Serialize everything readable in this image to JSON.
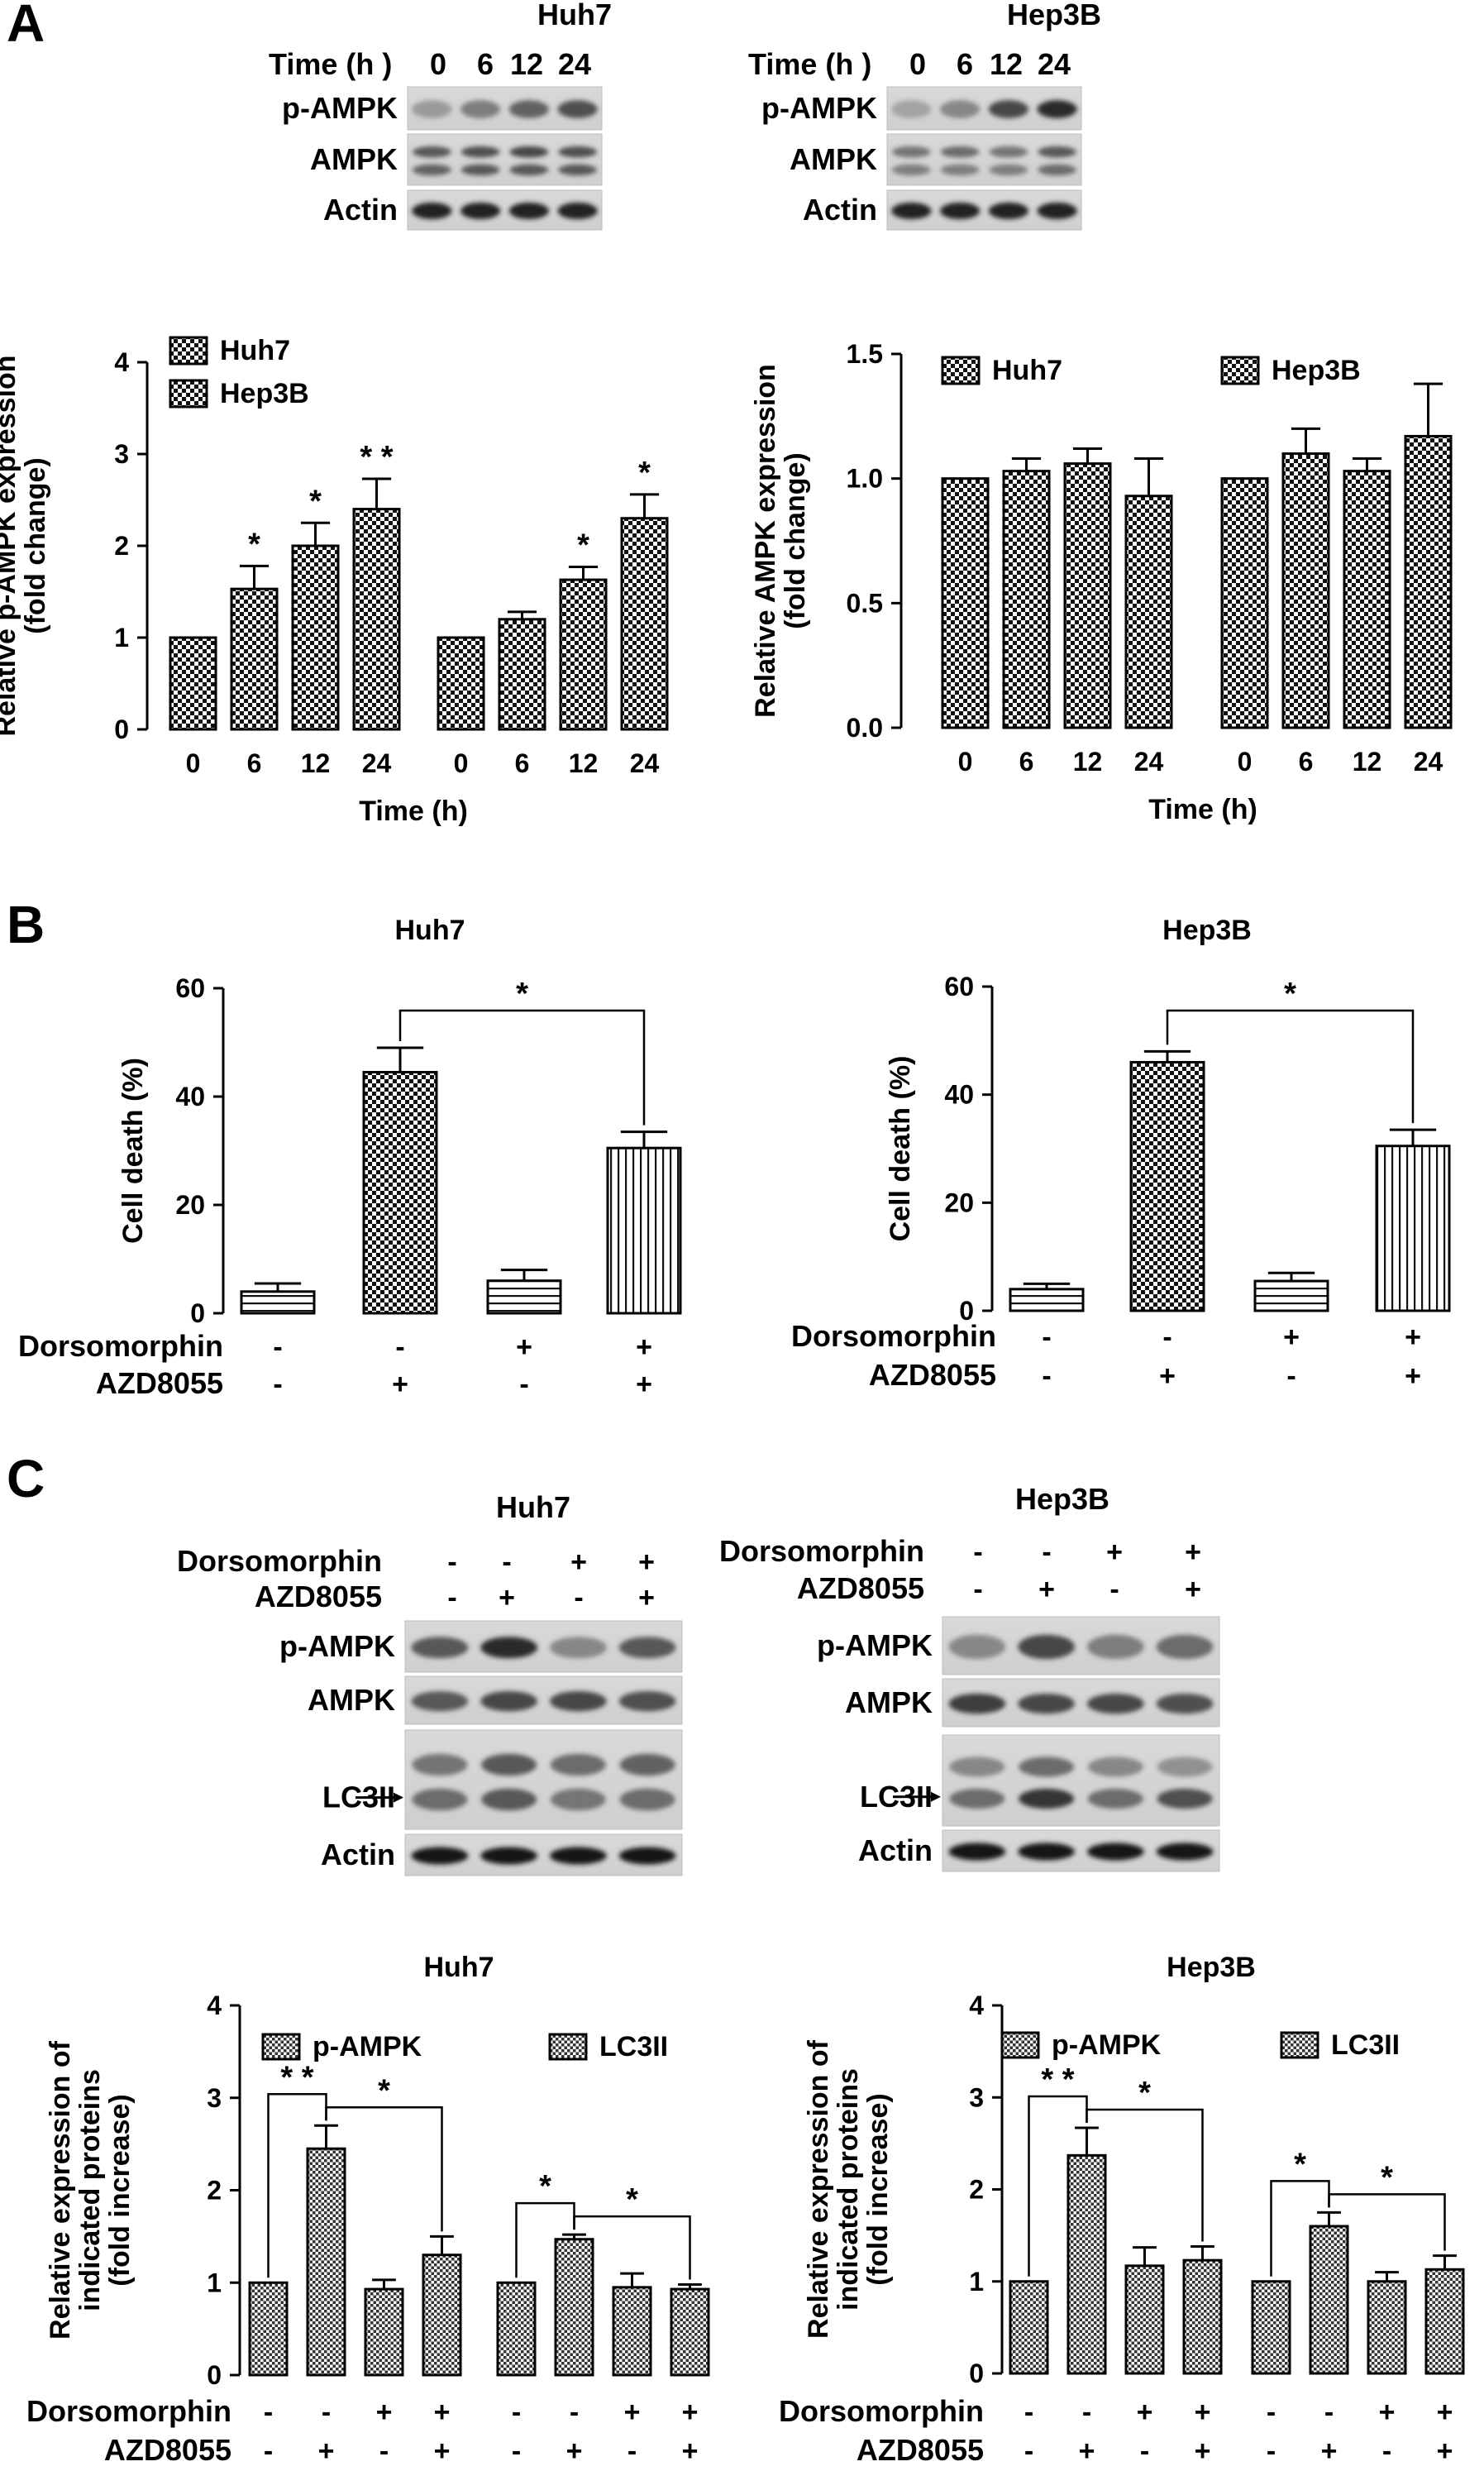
{
  "panels": {
    "A": "A",
    "B": "B",
    "C": "C"
  },
  "blots": [
    {
      "id": "A-huh7",
      "title": "Huh7",
      "header_label": "Time (h )",
      "lanes": [
        "0",
        "6",
        "12",
        "24"
      ],
      "rows": [
        "p-AMPK",
        "AMPK",
        "Actin"
      ]
    },
    {
      "id": "A-hep3b",
      "title": "Hep3B",
      "header_label": "Time (h )",
      "lanes": [
        "0",
        "6",
        "12",
        "24"
      ],
      "rows": [
        "p-AMPK",
        "AMPK",
        "Actin"
      ]
    },
    {
      "id": "C-huh7",
      "title": "Huh7",
      "treatments": [
        {
          "name": "Dorsomorphin",
          "signs": [
            "-",
            "-",
            "+",
            "+"
          ]
        },
        {
          "name": "AZD8055",
          "signs": [
            "-",
            "+",
            "-",
            "+"
          ]
        }
      ],
      "rows": [
        "p-AMPK",
        "AMPK",
        "LC3II",
        "Actin"
      ]
    },
    {
      "id": "C-hep3b",
      "title": "Hep3B",
      "treatments": [
        {
          "name": "Dorsomorphin",
          "signs": [
            "-",
            "-",
            "+",
            "+"
          ]
        },
        {
          "name": "AZD8055",
          "signs": [
            "-",
            "+",
            "-",
            "+"
          ]
        }
      ],
      "rows": [
        "p-AMPK",
        "AMPK",
        "LC3II",
        "Actin"
      ]
    }
  ],
  "chart_data": [
    {
      "id": "A-pampk",
      "type": "bar",
      "ylabel": "Relative p-AMPK expression\n(fold change)",
      "xlabel": "Time (h)",
      "ylim": [
        0,
        4
      ],
      "yticks": [
        "0",
        "1",
        "2",
        "3",
        "4"
      ],
      "categories": [
        "0",
        "6",
        "12",
        "24"
      ],
      "series": [
        {
          "name": "Huh7",
          "values": [
            1.0,
            1.53,
            2.0,
            2.4
          ],
          "errors": [
            0,
            0.25,
            0.25,
            0.33
          ],
          "stars": [
            "",
            "*",
            "*",
            "**"
          ]
        },
        {
          "name": "Hep3B",
          "values": [
            1.0,
            1.2,
            1.63,
            2.3
          ],
          "errors": [
            0,
            0.08,
            0.14,
            0.26
          ],
          "stars": [
            "",
            "",
            "*",
            "*"
          ]
        }
      ]
    },
    {
      "id": "A-ampk",
      "type": "bar",
      "ylabel": "Relative AMPK expression\n(fold change)",
      "xlabel": "Time (h)",
      "ylim": [
        0,
        1.5
      ],
      "yticks": [
        "0.0",
        "0.5",
        "1.0",
        "1.5"
      ],
      "categories": [
        "0",
        "6",
        "12",
        "24"
      ],
      "series": [
        {
          "name": "Huh7",
          "values": [
            1.0,
            1.03,
            1.06,
            0.93
          ],
          "errors": [
            0,
            0.05,
            0.06,
            0.15
          ]
        },
        {
          "name": "Hep3B",
          "values": [
            1.0,
            1.1,
            1.03,
            1.17
          ],
          "errors": [
            0,
            0.1,
            0.05,
            0.21
          ]
        }
      ]
    },
    {
      "id": "B-huh7",
      "type": "bar",
      "title": "Huh7",
      "ylabel": "Cell death (%)",
      "ylim": [
        0,
        60
      ],
      "yticks": [
        "0",
        "20",
        "40",
        "60"
      ],
      "treatments": [
        {
          "name": "Dorsomorphin",
          "signs": [
            "-",
            "-",
            "+",
            "+"
          ]
        },
        {
          "name": "AZD8055",
          "signs": [
            "-",
            "+",
            "-",
            "+"
          ]
        }
      ],
      "values": [
        4.0,
        44.5,
        6.0,
        30.5
      ],
      "errors": [
        1.5,
        4.5,
        2.0,
        3.0
      ],
      "significance": [
        {
          "from": 1,
          "to": 3,
          "label": "*"
        }
      ]
    },
    {
      "id": "B-hep3b",
      "type": "bar",
      "title": "Hep3B",
      "ylabel": "Cell death (%)",
      "ylim": [
        0,
        60
      ],
      "yticks": [
        "0",
        "20",
        "40",
        "60"
      ],
      "treatments": [
        {
          "name": "Dorsomorphin",
          "signs": [
            "-",
            "-",
            "+",
            "+"
          ]
        },
        {
          "name": "AZD8055",
          "signs": [
            "-",
            "+",
            "-",
            "+"
          ]
        }
      ],
      "values": [
        4.0,
        46.0,
        5.5,
        30.5
      ],
      "errors": [
        1.0,
        2.0,
        1.5,
        3.0
      ],
      "significance": [
        {
          "from": 1,
          "to": 3,
          "label": "*"
        }
      ]
    },
    {
      "id": "C-huh7-chart",
      "type": "bar",
      "title": "Huh7",
      "ylabel": "Relative expression of\nindicated proteins\n(fold increase)",
      "ylim": [
        0,
        4
      ],
      "yticks": [
        "0",
        "1",
        "2",
        "3",
        "4"
      ],
      "treatments": [
        {
          "name": "Dorsomorphin",
          "signs": [
            "-",
            "-",
            "+",
            "+",
            "-",
            "-",
            "+",
            "+"
          ]
        },
        {
          "name": "AZD8055",
          "signs": [
            "-",
            "+",
            "-",
            "+",
            "-",
            "+",
            "-",
            "+"
          ]
        }
      ],
      "series": [
        {
          "name": "p-AMPK",
          "values": [
            1.0,
            2.45,
            0.93,
            1.3
          ],
          "errors": [
            0,
            0.25,
            0.1,
            0.2
          ]
        },
        {
          "name": "LC3II",
          "values": [
            1.0,
            1.47,
            0.95,
            0.93
          ],
          "errors": [
            0,
            0.05,
            0.15,
            0.05
          ]
        }
      ],
      "significance": [
        {
          "series": 0,
          "from": 0,
          "to": 1,
          "label": "**"
        },
        {
          "series": 0,
          "from": 1,
          "to": 3,
          "label": "*"
        },
        {
          "series": 1,
          "from": 0,
          "to": 1,
          "label": "*"
        },
        {
          "series": 1,
          "from": 1,
          "to": 3,
          "label": "*"
        }
      ]
    },
    {
      "id": "C-hep3b-chart",
      "type": "bar",
      "title": "Hep3B",
      "ylabel": "Relative expression of\nindicated proteins\n(fold increase)",
      "ylim": [
        0,
        4
      ],
      "yticks": [
        "0",
        "1",
        "2",
        "3",
        "4"
      ],
      "treatments": [
        {
          "name": "Dorsomorphin",
          "signs": [
            "-",
            "-",
            "+",
            "+",
            "-",
            "-",
            "+",
            "+"
          ]
        },
        {
          "name": "AZD8055",
          "signs": [
            "-",
            "+",
            "-",
            "+",
            "-",
            "+",
            "-",
            "+"
          ]
        }
      ],
      "series": [
        {
          "name": "p-AMPK",
          "values": [
            1.0,
            2.37,
            1.17,
            1.23
          ],
          "errors": [
            0,
            0.3,
            0.2,
            0.15
          ]
        },
        {
          "name": "LC3II",
          "values": [
            1.0,
            1.6,
            1.0,
            1.13
          ],
          "errors": [
            0,
            0.15,
            0.1,
            0.15
          ]
        }
      ],
      "significance": [
        {
          "series": 0,
          "from": 0,
          "to": 1,
          "label": "**"
        },
        {
          "series": 0,
          "from": 1,
          "to": 3,
          "label": "*"
        },
        {
          "series": 1,
          "from": 0,
          "to": 1,
          "label": "*"
        },
        {
          "series": 1,
          "from": 1,
          "to": 3,
          "label": "*"
        }
      ]
    }
  ]
}
